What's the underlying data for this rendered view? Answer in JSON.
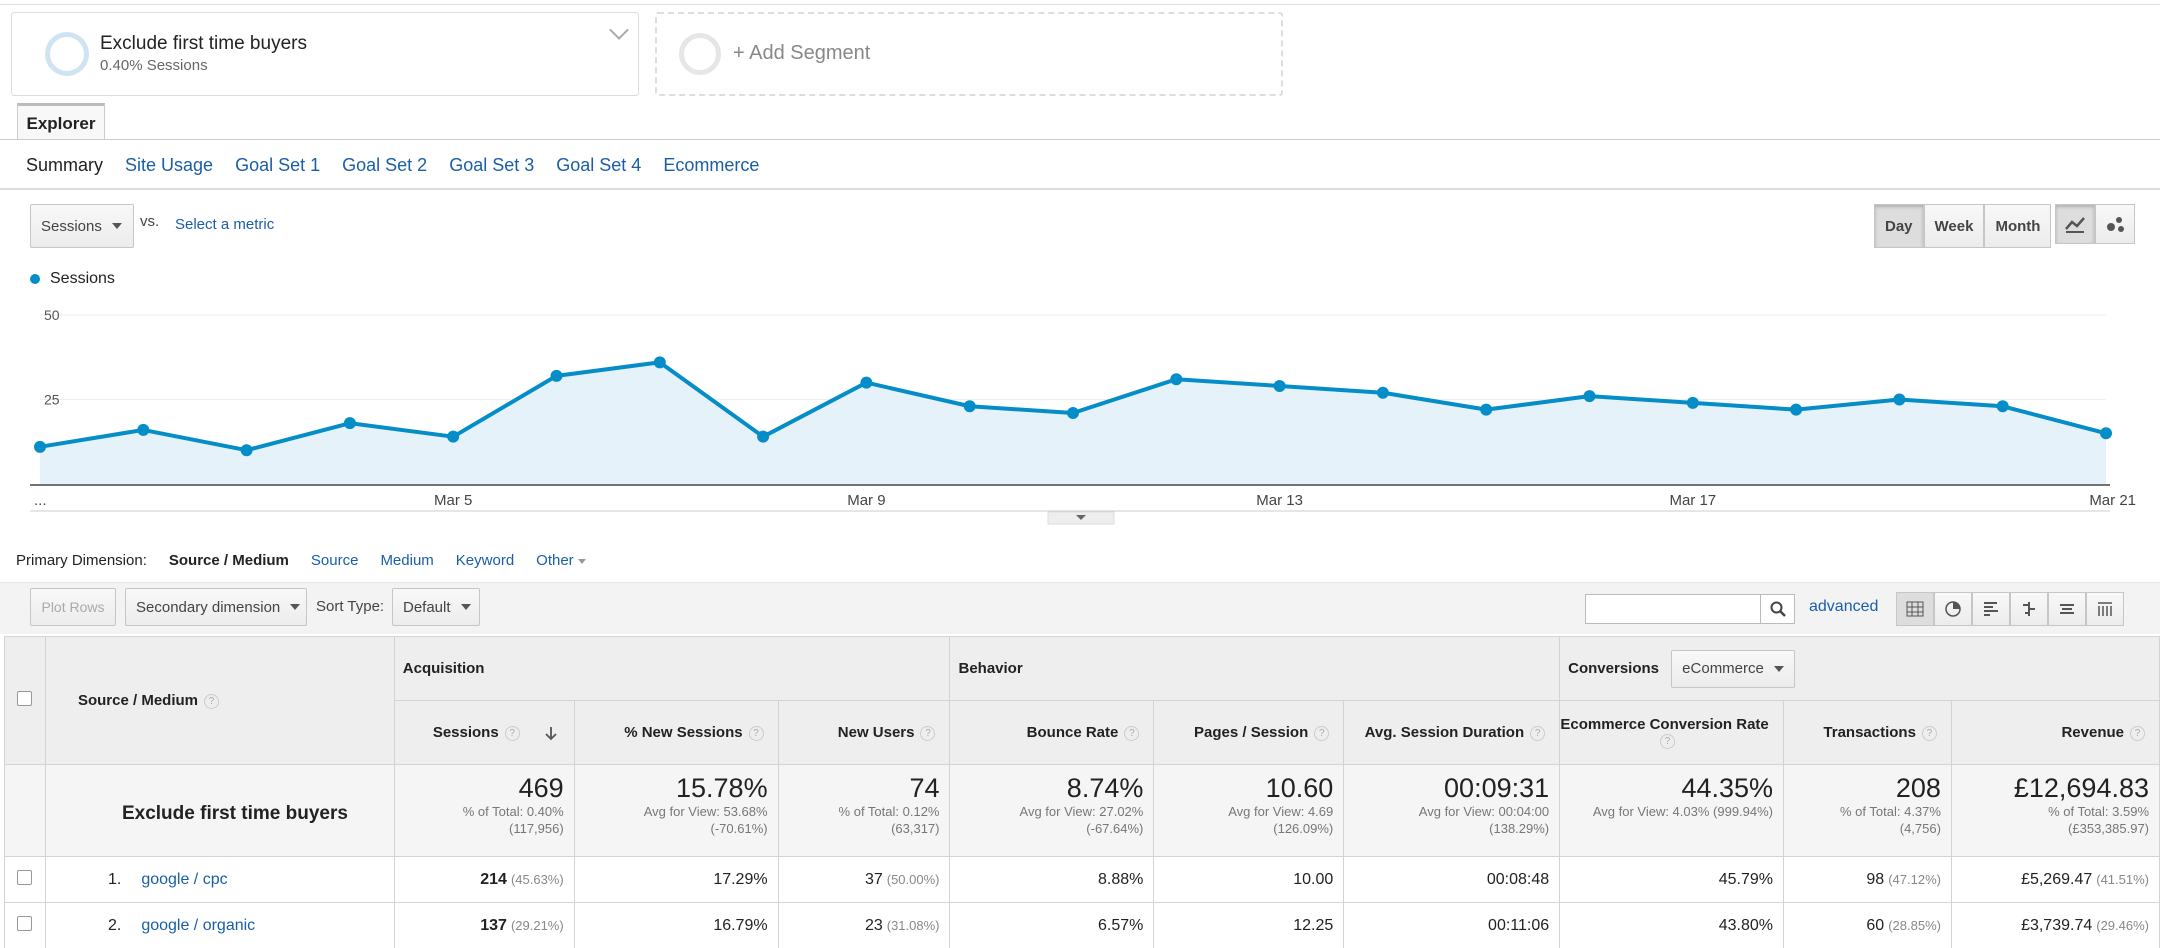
{
  "segments": {
    "active": {
      "title": "Exclude first time buyers",
      "subtitle": "0.40% Sessions"
    },
    "add_label": "+ Add Segment"
  },
  "explorer_tab": "Explorer",
  "subtabs": [
    "Summary",
    "Site Usage",
    "Goal Set 1",
    "Goal Set 2",
    "Goal Set 3",
    "Goal Set 4",
    "Ecommerce"
  ],
  "controls": {
    "metric": "Sessions",
    "vs": "vs.",
    "select_metric": "Select a metric",
    "periods": [
      "Day",
      "Week",
      "Month"
    ],
    "selected_period": "Day"
  },
  "chart_data": {
    "type": "area",
    "series": [
      {
        "name": "Sessions",
        "values": [
          11,
          16,
          10,
          18,
          14,
          32,
          36,
          14,
          30,
          23,
          21,
          31,
          29,
          27,
          22,
          26,
          24,
          22,
          25,
          23,
          15
        ]
      }
    ],
    "x_tick_labels": [
      "...",
      "Mar 5",
      "Mar 9",
      "Mar 13",
      "Mar 17",
      "Mar 21"
    ],
    "y_ticks": [
      25,
      50
    ],
    "ylim": [
      0,
      50
    ],
    "color": "#058dc7"
  },
  "primary_dimension": {
    "label": "Primary Dimension:",
    "options": [
      "Source / Medium",
      "Source",
      "Medium",
      "Keyword",
      "Other"
    ],
    "active": "Source / Medium"
  },
  "toolbar": {
    "plot_rows": "Plot Rows",
    "secondary_dimension": "Secondary dimension",
    "sort_type_label": "Sort Type:",
    "sort_type": "Default",
    "advanced": "advanced"
  },
  "table": {
    "dim_header": "Source / Medium",
    "groups": {
      "acquisition": "Acquisition",
      "behavior": "Behavior",
      "conversions": "Conversions",
      "conversions_dd": "eCommerce"
    },
    "columns": [
      "Sessions",
      "% New Sessions",
      "New Users",
      "Bounce Rate",
      "Pages / Session",
      "Avg. Session Duration",
      "Ecommerce Conversion Rate",
      "Transactions",
      "Revenue"
    ],
    "total": {
      "label": "Exclude first time buyers",
      "cells": [
        {
          "value": "469",
          "l1": "% of Total: 0.40%",
          "l2": "(117,956)"
        },
        {
          "value": "15.78%",
          "l1": "Avg for View: 53.68%",
          "l2": "(-70.61%)"
        },
        {
          "value": "74",
          "l1": "% of Total: 0.12%",
          "l2": "(63,317)"
        },
        {
          "value": "8.74%",
          "l1": "Avg for View: 27.02%",
          "l2": "(-67.64%)"
        },
        {
          "value": "10.60",
          "l1": "Avg for View: 4.69",
          "l2": "(126.09%)"
        },
        {
          "value": "00:09:31",
          "l1": "Avg for View: 00:04:00",
          "l2": "(138.29%)"
        },
        {
          "value": "44.35%",
          "l1": "Avg for View: 4.03% (999.94%)",
          "l2": ""
        },
        {
          "value": "208",
          "l1": "% of Total: 4.37%",
          "l2": "(4,756)"
        },
        {
          "value": "£12,694.83",
          "l1": "% of Total: 3.59%",
          "l2": "(£353,385.97)"
        }
      ]
    },
    "rows": [
      {
        "index": "1.",
        "name": "google / cpc",
        "sessions": "214",
        "sessions_pct": "(45.63%)",
        "new_sessions": "17.29%",
        "new_users": "37",
        "new_users_pct": "(50.00%)",
        "bounce": "8.88%",
        "pages": "10.00",
        "duration": "00:08:48",
        "conv": "45.79%",
        "transactions": "98",
        "transactions_pct": "(47.12%)",
        "revenue": "£5,269.47",
        "revenue_pct": "(41.51%)"
      },
      {
        "index": "2.",
        "name": "google / organic",
        "sessions": "137",
        "sessions_pct": "(29.21%)",
        "new_sessions": "16.79%",
        "new_users": "23",
        "new_users_pct": "(31.08%)",
        "bounce": "6.57%",
        "pages": "12.25",
        "duration": "00:11:06",
        "conv": "43.80%",
        "transactions": "60",
        "transactions_pct": "(28.85%)",
        "revenue": "£3,739.74",
        "revenue_pct": "(29.46%)"
      }
    ]
  }
}
